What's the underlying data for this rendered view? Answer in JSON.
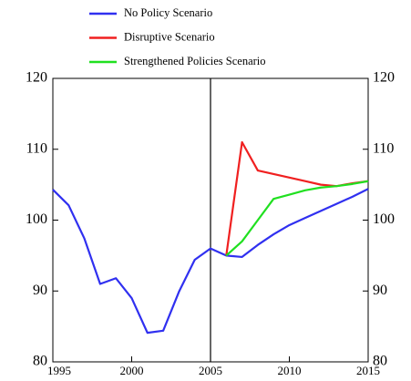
{
  "chart_data": {
    "type": "line",
    "x": [
      1995,
      1996,
      1997,
      1998,
      1999,
      2000,
      2001,
      2002,
      2003,
      2004,
      2005,
      2006,
      2007,
      2008,
      2009,
      2010,
      2011,
      2012,
      2013,
      2014,
      2015
    ],
    "series": [
      {
        "name": "No Policy Scenario",
        "color": "#3030f0",
        "values": [
          104.3,
          102.1,
          97.4,
          91,
          91.8,
          89,
          84.1,
          84.4,
          89.9,
          94.4,
          96,
          95,
          94.8,
          96.5,
          98,
          99.3,
          100.3,
          101.3,
          102.3,
          103.3,
          104.4
        ]
      },
      {
        "name": "Disruptive Scenario",
        "color": "#f02020",
        "values": [
          null,
          null,
          null,
          null,
          null,
          null,
          null,
          null,
          null,
          null,
          null,
          95,
          111,
          107,
          106.5,
          106,
          105.5,
          105,
          104.8,
          105.2,
          105.5
        ]
      },
      {
        "name": "Strengthened Policies Scenario",
        "color": "#20e020",
        "values": [
          null,
          null,
          null,
          null,
          null,
          null,
          null,
          null,
          null,
          null,
          null,
          95,
          97,
          100,
          103,
          103.6,
          104.2,
          104.6,
          104.8,
          105.1,
          105.5
        ]
      }
    ],
    "xlim": [
      1995,
      2015
    ],
    "xticks": [
      1995,
      2000,
      2005,
      2010,
      2015
    ],
    "ylim": [
      80,
      120
    ],
    "yticks": [
      80,
      90,
      100,
      110,
      120
    ],
    "y2lim": [
      80,
      120
    ],
    "y2ticks": [
      80,
      90,
      100,
      110,
      120
    ],
    "vline": 2005,
    "grid": false,
    "legend": "top"
  }
}
